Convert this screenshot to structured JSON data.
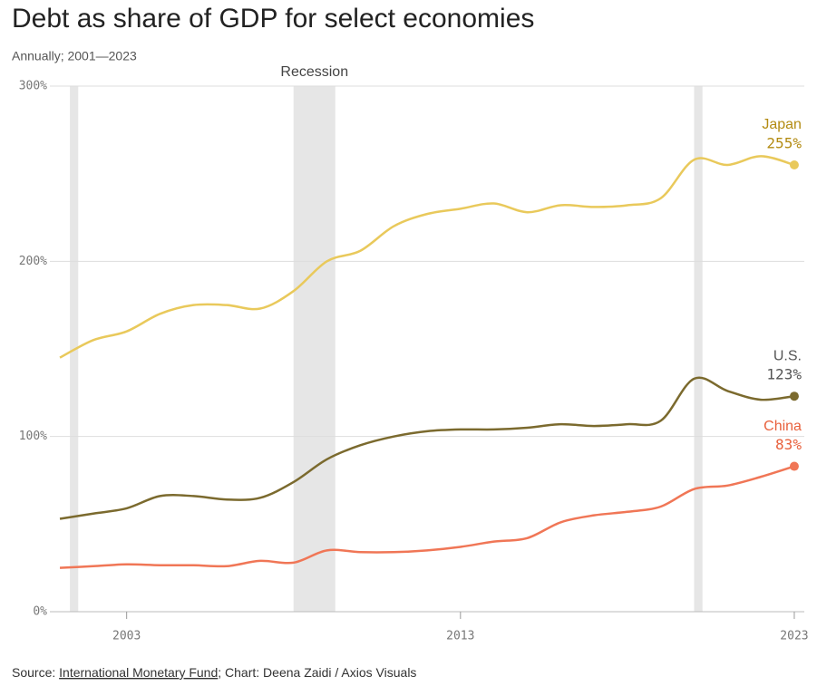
{
  "chart_data": {
    "type": "line",
    "title": "Debt as share of GDP for select economies",
    "subtitle": "Annually; 2001—2023",
    "source_prefix": "Source: ",
    "source_link": "International Monetary Fund",
    "source_suffix": "; Chart: Deena Zaidi / Axios Visuals",
    "recession_label": "Recession",
    "recessions": [
      [
        2001.3,
        2001.55
      ],
      [
        2008.0,
        2009.25
      ],
      [
        2020.0,
        2020.25
      ]
    ],
    "x": [
      2001,
      2002,
      2003,
      2004,
      2005,
      2006,
      2007,
      2008,
      2009,
      2010,
      2011,
      2012,
      2013,
      2014,
      2015,
      2016,
      2017,
      2018,
      2019,
      2020,
      2021,
      2022,
      2023
    ],
    "series": [
      {
        "name": "Japan",
        "color": "#e9c95b",
        "label_color": "#b38b12",
        "values": [
          145,
          155,
          160,
          170,
          175,
          175,
          173,
          183,
          200,
          206,
          220,
          227,
          230,
          233,
          228,
          232,
          231,
          232,
          236,
          258,
          255,
          260,
          255
        ],
        "value_labels": [
          null,
          null,
          null,
          null,
          null,
          null,
          null,
          null,
          null,
          null,
          null,
          null,
          null,
          null,
          null,
          null,
          null,
          null,
          null,
          null,
          null,
          null,
          "255%"
        ]
      },
      {
        "name": "U.S.",
        "color": "#7b6a2e",
        "label_color": "#555555",
        "values": [
          53,
          56,
          59,
          66,
          66,
          64,
          65,
          74,
          87,
          95,
          100,
          103,
          104,
          104,
          105,
          107,
          106,
          107,
          109,
          133,
          126,
          121,
          123
        ],
        "value_labels": [
          null,
          null,
          null,
          null,
          null,
          null,
          null,
          null,
          null,
          null,
          null,
          null,
          null,
          null,
          null,
          null,
          null,
          null,
          null,
          null,
          null,
          null,
          "123%"
        ]
      },
      {
        "name": "China",
        "color": "#f07656",
        "label_color": "#e8603c",
        "values": [
          25,
          26,
          27,
          26.5,
          26.5,
          26,
          29,
          28,
          35,
          34,
          34,
          35,
          37,
          40,
          42,
          51,
          55,
          57,
          60,
          70,
          72,
          77,
          83
        ],
        "value_labels": [
          null,
          null,
          null,
          null,
          null,
          null,
          null,
          null,
          null,
          null,
          null,
          null,
          null,
          null,
          null,
          null,
          null,
          null,
          null,
          null,
          null,
          null,
          "83%"
        ]
      }
    ],
    "xlim": [
      2000.7,
      2023.3
    ],
    "xticks": [
      2003,
      2013,
      2023
    ],
    "ylim": [
      0,
      300
    ],
    "yticks": [
      {
        "value": 0,
        "label": "0%"
      },
      {
        "value": 100,
        "label": "100%"
      },
      {
        "value": 200,
        "label": "200%"
      },
      {
        "value": 300,
        "label": "300%"
      }
    ],
    "grid": true
  }
}
